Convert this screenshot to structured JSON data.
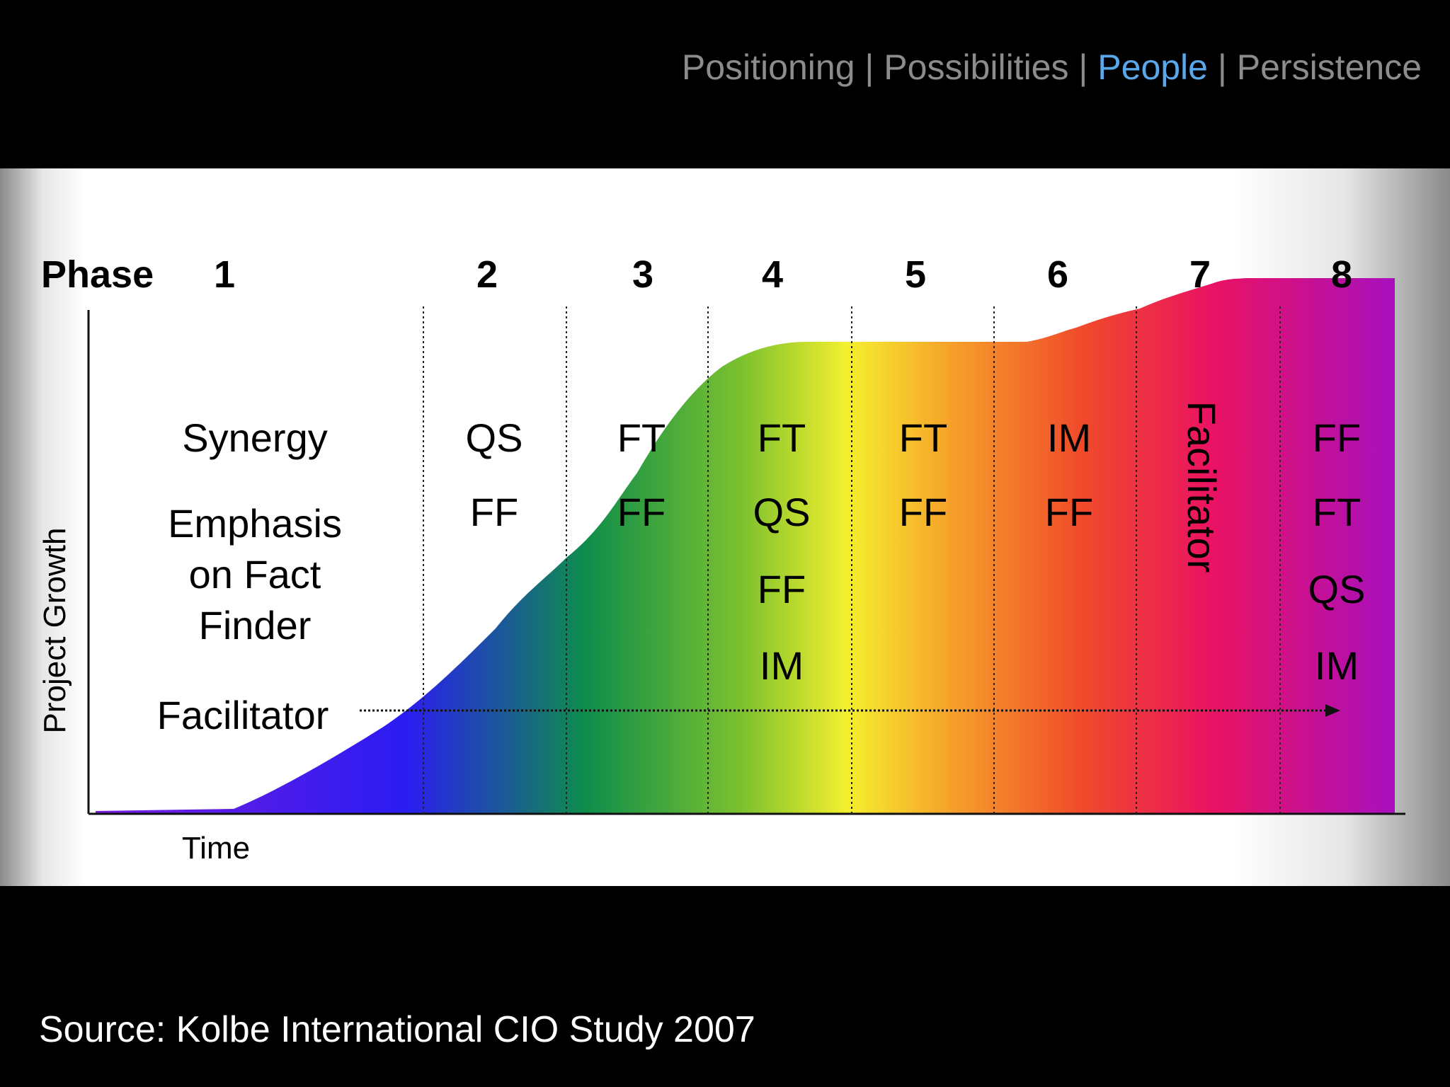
{
  "nav": {
    "items": [
      {
        "label": "Positioning",
        "active": false
      },
      {
        "label": "Possibilities",
        "active": false
      },
      {
        "label": "People",
        "active": true
      },
      {
        "label": "Persistence",
        "active": false
      }
    ],
    "separator": "|",
    "colors": {
      "inactive": "#8c8c8c",
      "active": "#5aa7ea"
    }
  },
  "diagram": {
    "phase_label": "Phase",
    "phases": [
      "1",
      "2",
      "3",
      "4",
      "5",
      "6",
      "7",
      "8"
    ],
    "y_axis_label": "Project Growth",
    "x_axis_label": "Time",
    "row_labels": {
      "synergy": "Synergy",
      "emphasis": [
        "Emphasis",
        "on Fact",
        "Finder"
      ],
      "facilitator": "Facilitator"
    },
    "columns": [
      {
        "phase": "2",
        "modes": [
          "QS",
          "FF"
        ]
      },
      {
        "phase": "3",
        "modes": [
          "FT",
          "FF"
        ]
      },
      {
        "phase": "4",
        "modes": [
          "FT",
          "QS",
          "FF",
          "IM"
        ]
      },
      {
        "phase": "5",
        "modes": [
          "FT",
          "FF"
        ]
      },
      {
        "phase": "6",
        "modes": [
          "IM",
          "FF"
        ]
      },
      {
        "phase": "7",
        "vertical_label": "Facilitator"
      },
      {
        "phase": "8",
        "modes": [
          "FF",
          "FT",
          "QS",
          "IM"
        ]
      }
    ],
    "gradient_colors": [
      "#7a1de0",
      "#2a1cf2",
      "#0e8e4a",
      "#7dc22e",
      "#f5f02e",
      "#f6a02a",
      "#f04a2a",
      "#ea1262",
      "#a80fbe"
    ]
  },
  "source": "Source: Kolbe International CIO Study 2007"
}
